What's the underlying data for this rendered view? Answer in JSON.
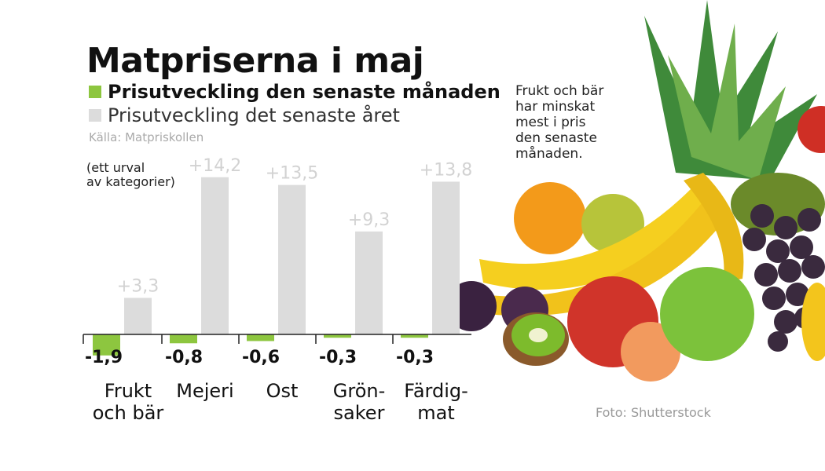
{
  "chart_data": {
    "type": "bar",
    "title": "Matpriserna i maj",
    "categories": [
      "Frukt\noch bär",
      "Mejeri",
      "Ost",
      "Grön-\nsaker",
      "Färdig-\nmat"
    ],
    "series": [
      {
        "name": "Prisutveckling den senaste månaden",
        "color": "#8dc63f",
        "values": [
          -1.9,
          -0.8,
          -0.6,
          -0.3,
          -0.3
        ],
        "labels": [
          "-1,9",
          "-0,8",
          "-0,6",
          "-0,3",
          "-0,3"
        ]
      },
      {
        "name": "Prisutveckling det senaste året",
        "color": "#dcdcdc",
        "values": [
          3.3,
          14.2,
          13.5,
          9.3,
          13.8
        ],
        "labels": [
          "+3,3",
          "+14,2",
          "+13,5",
          "+9,3",
          "+13,8"
        ]
      }
    ],
    "ylim": [
      -2,
      15
    ],
    "grid": false,
    "legend_position": "top-left"
  },
  "source": "Källa: Matpriskollen",
  "note": "(ett urval\nav kategorier)",
  "annotation": "Frukt och bär\nhar minskat\nmest i pris\nden senaste\nmånaden.",
  "credit": "Foto: Shutterstock",
  "colors": {
    "month": "#8dc63f",
    "year": "#dcdcdc",
    "axis": "#222222"
  }
}
